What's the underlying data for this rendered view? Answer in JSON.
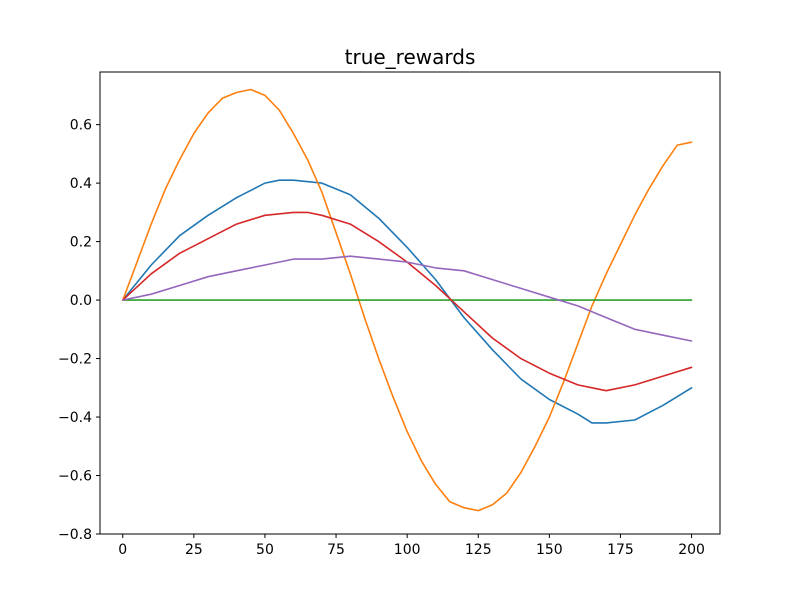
{
  "chart_data": {
    "type": "line",
    "title": "true_rewards",
    "xlabel": "",
    "ylabel": "",
    "xlim": [
      -8,
      210
    ],
    "ylim": [
      -0.8,
      0.78
    ],
    "grid": false,
    "x_ticks": [
      0,
      25,
      50,
      75,
      100,
      125,
      150,
      175,
      200
    ],
    "x_tick_labels": [
      "0",
      "25",
      "50",
      "75",
      "100",
      "125",
      "150",
      "175",
      "200"
    ],
    "y_ticks": [
      -0.8,
      -0.6,
      -0.4,
      -0.2,
      0.0,
      0.2,
      0.4,
      0.6
    ],
    "y_tick_labels": [
      "−0.8",
      "−0.6",
      "−0.4",
      "−0.2",
      "0.0",
      "0.2",
      "0.4",
      "0.6"
    ],
    "series": [
      {
        "color": "#1f77b4",
        "x": [
          0,
          10,
          20,
          30,
          40,
          50,
          55,
          60,
          70,
          80,
          90,
          100,
          110,
          120,
          130,
          140,
          150,
          160,
          165,
          170,
          180,
          190,
          200
        ],
        "y": [
          0.0,
          0.12,
          0.22,
          0.29,
          0.35,
          0.4,
          0.41,
          0.41,
          0.4,
          0.36,
          0.28,
          0.18,
          0.07,
          -0.06,
          -0.17,
          -0.27,
          -0.34,
          -0.39,
          -0.42,
          -0.42,
          -0.41,
          -0.36,
          -0.3
        ]
      },
      {
        "color": "#ff7f0e",
        "x": [
          0,
          5,
          10,
          15,
          20,
          25,
          30,
          35,
          40,
          45,
          50,
          55,
          60,
          65,
          70,
          75,
          80,
          85,
          90,
          95,
          100,
          105,
          110,
          115,
          120,
          125,
          130,
          135,
          140,
          145,
          150,
          155,
          160,
          165,
          170,
          175,
          180,
          185,
          190,
          195,
          200
        ],
        "y": [
          0.0,
          0.13,
          0.26,
          0.38,
          0.48,
          0.57,
          0.64,
          0.69,
          0.71,
          0.72,
          0.7,
          0.65,
          0.57,
          0.48,
          0.37,
          0.23,
          0.09,
          -0.06,
          -0.2,
          -0.33,
          -0.45,
          -0.55,
          -0.63,
          -0.69,
          -0.71,
          -0.72,
          -0.7,
          -0.66,
          -0.59,
          -0.5,
          -0.4,
          -0.28,
          -0.15,
          -0.02,
          0.09,
          0.19,
          0.29,
          0.38,
          0.46,
          0.53,
          0.54
        ]
      },
      {
        "color": "#2ca02c",
        "x": [
          0,
          10,
          20,
          30,
          40,
          50,
          60,
          70,
          80,
          90,
          100,
          110,
          120,
          130,
          140,
          150,
          160,
          170,
          180,
          190,
          200
        ],
        "y": [
          0.0,
          0.0,
          0.0,
          0.0,
          0.0,
          0.0,
          0.0,
          0.0,
          0.0,
          0.0,
          0.0,
          0.0,
          0.0,
          0.0,
          0.0,
          0.0,
          0.0,
          0.0,
          0.0,
          0.0,
          0.0
        ]
      },
      {
        "color": "#d62728",
        "x": [
          0,
          10,
          20,
          30,
          40,
          50,
          60,
          65,
          70,
          80,
          90,
          100,
          110,
          120,
          130,
          140,
          150,
          160,
          165,
          170,
          180,
          190,
          200
        ],
        "y": [
          0.0,
          0.09,
          0.16,
          0.21,
          0.26,
          0.29,
          0.3,
          0.3,
          0.29,
          0.26,
          0.2,
          0.13,
          0.05,
          -0.04,
          -0.13,
          -0.2,
          -0.25,
          -0.29,
          -0.3,
          -0.31,
          -0.29,
          -0.26,
          -0.23
        ]
      },
      {
        "color": "#9467bd",
        "x": [
          0,
          10,
          20,
          30,
          40,
          50,
          60,
          70,
          80,
          90,
          100,
          110,
          120,
          130,
          140,
          150,
          160,
          170,
          180,
          190,
          200
        ],
        "y": [
          0.0,
          0.02,
          0.05,
          0.08,
          0.1,
          0.12,
          0.14,
          0.14,
          0.15,
          0.14,
          0.13,
          0.11,
          0.1,
          0.07,
          0.04,
          0.01,
          -0.02,
          -0.06,
          -0.1,
          -0.12,
          -0.14
        ]
      }
    ]
  }
}
